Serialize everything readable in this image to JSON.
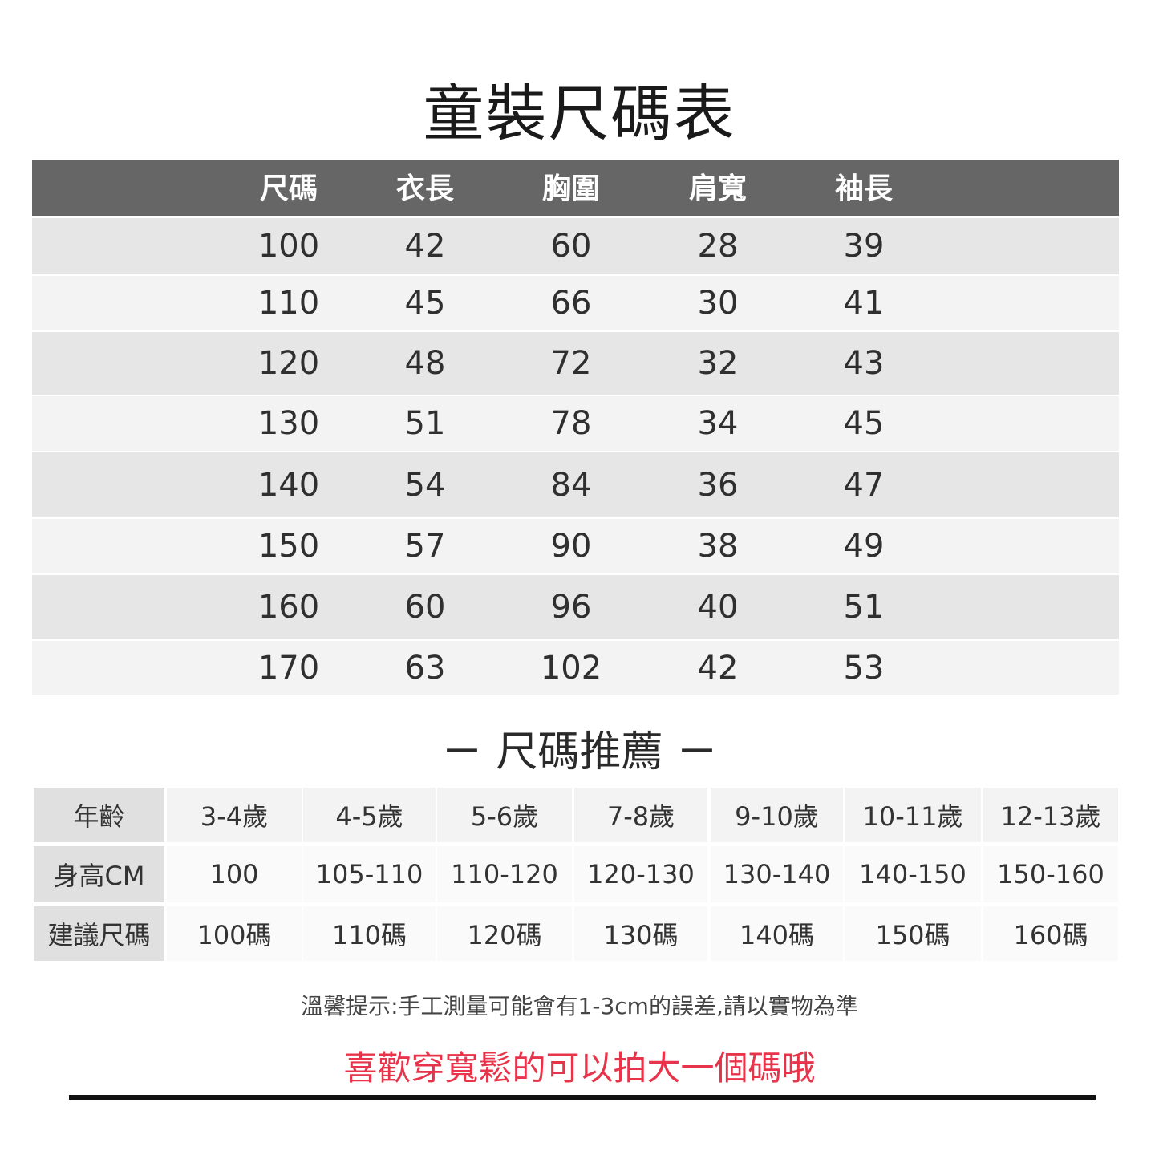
{
  "title": "童裝尺碼表",
  "size_table": {
    "headers": [
      "尺碼",
      "衣長",
      "胸圍",
      "肩寬",
      "袖長"
    ],
    "rows": [
      [
        "100",
        "42",
        "60",
        "28",
        "39"
      ],
      [
        "110",
        "45",
        "66",
        "30",
        "41"
      ],
      [
        "120",
        "48",
        "72",
        "32",
        "43"
      ],
      [
        "130",
        "51",
        "78",
        "34",
        "45"
      ],
      [
        "140",
        "54",
        "84",
        "36",
        "47"
      ],
      [
        "150",
        "57",
        "90",
        "38",
        "49"
      ],
      [
        "160",
        "60",
        "96",
        "40",
        "51"
      ],
      [
        "170",
        "63",
        "102",
        "42",
        "53"
      ]
    ]
  },
  "recommend": {
    "title": "－ 尺碼推薦 －",
    "rows": [
      {
        "label": "年齡",
        "values": [
          "3-4歲",
          "4-5歲",
          "5-6歲",
          "7-8歲",
          "9-10歲",
          "10-11歲",
          "12-13歲"
        ]
      },
      {
        "label": "身高CM",
        "values": [
          "100",
          "105-110",
          "110-120",
          "120-130",
          "130-140",
          "140-150",
          "150-160"
        ]
      },
      {
        "label": "建議尺碼",
        "values": [
          "100碼",
          "110碼",
          "120碼",
          "130碼",
          "140碼",
          "150碼",
          "160碼"
        ]
      }
    ]
  },
  "note": "溫馨提示:手工測量可能會有1-3cm的誤差,請以實物為準",
  "highlight": "喜歡穿寬鬆的可以拍大一個碼哦",
  "colors": {
    "header_bg": "#666666",
    "row_dark": "#e6e6e6",
    "row_light": "#f3f3f3",
    "highlight": "#e8344a"
  }
}
